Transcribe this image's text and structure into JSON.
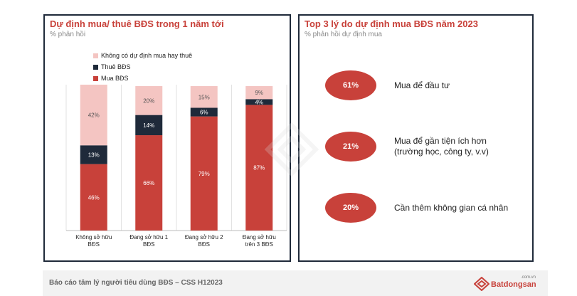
{
  "left_panel": {
    "title": "Dự định mua/ thuê BĐS trong 1 năm tới",
    "subtitle": "% phản hồi"
  },
  "chart_data": {
    "type": "bar",
    "stacked": true,
    "categories": [
      "Không sở hữu BĐS",
      "Đang sở hữu 1 BĐS",
      "Đang sở hữu 2 BĐS",
      "Đang sở hữu trên 3 BĐS"
    ],
    "category_lines": [
      [
        "Không sở hữu",
        "BĐS"
      ],
      [
        "Đang sở hữu 1",
        "BĐS"
      ],
      [
        "Đang sở hữu 2",
        "BĐS"
      ],
      [
        "Đang sở hữu",
        "trên 3 BĐS"
      ]
    ],
    "series": [
      {
        "name": "Mua BĐS",
        "values": [
          46,
          66,
          79,
          87
        ],
        "labels": [
          "46%",
          "66%",
          "79%",
          "87%"
        ],
        "color": "#c8413a",
        "label_color": "#ffffff"
      },
      {
        "name": "Thuê BĐS",
        "values": [
          13,
          14,
          6,
          4
        ],
        "labels": [
          "13%",
          "14%",
          "6%",
          "4%"
        ],
        "color": "#1f2a3a",
        "label_color": "#ffffff"
      },
      {
        "name": "Không có dự định mua hay thuê",
        "values": [
          42,
          20,
          15,
          9
        ],
        "labels": [
          "42%",
          "20%",
          "15%",
          "9%"
        ],
        "color": "#f4c5c2",
        "label_color": "#555555"
      }
    ],
    "legend": [
      "Không có dự định mua hay thuê",
      "Thuê BĐS",
      "Mua BĐS"
    ],
    "legend_position": "top",
    "ylim": [
      0,
      100
    ],
    "grid": "vertical"
  },
  "right_panel": {
    "title": "Top 3 lý do dự định mua BĐS năm 2023",
    "subtitle": "% phản hồi dự định mua",
    "reasons": [
      {
        "value": "61%",
        "lines": [
          "Mua để đầu tư"
        ]
      },
      {
        "value": "21%",
        "lines": [
          "Mua để gần tiện ích hơn",
          "(trường học, công ty, v.v)"
        ]
      },
      {
        "value": "20%",
        "lines": [
          "Cần thêm không gian cá nhân"
        ]
      }
    ],
    "accent_color": "#c8413a"
  },
  "footer": {
    "text": "Báo cáo tâm lý người tiêu dùng BĐS – CSS H12023",
    "logo_name": "Batdongsan",
    "logo_domain": ".com.vn"
  }
}
